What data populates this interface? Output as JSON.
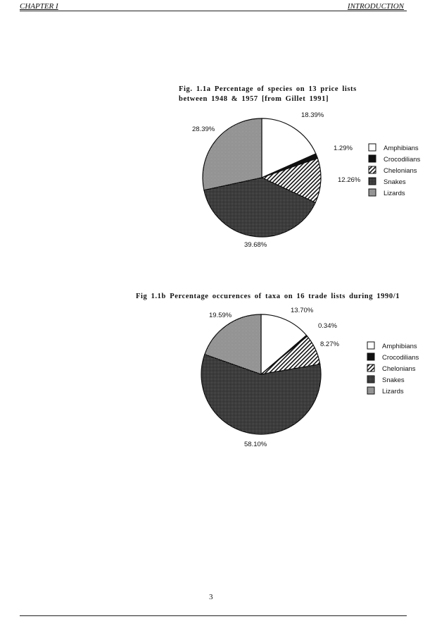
{
  "header": {
    "left": "CHAPTER I",
    "right": "INTRODUCTION"
  },
  "page_number": "3",
  "chart_data": [
    {
      "type": "pie",
      "title": "Fig. 1.1a Percentage of species on 13 price lists between 1948 & 1957 [from Gillet 1991]",
      "title_lines": [
        "Fig. 1.1a Percentage of species on 13 price lists",
        "between 1948 & 1957 [from Gillet 1991]"
      ],
      "categories": [
        "Amphibians",
        "Crocodilians",
        "Chelonians",
        "Snakes",
        "Lizards"
      ],
      "values": [
        18.39,
        1.29,
        12.26,
        39.68,
        28.39
      ],
      "labels": [
        "18.39%",
        "1.29%",
        "12.26%",
        "39.68%",
        "28.39%"
      ],
      "start": "12 o'clock, clockwise",
      "legend": "right"
    },
    {
      "type": "pie",
      "title": "Fig 1.1b Percentage occurences of taxa on 16 trade lists during 1990/1",
      "title_lines": [
        "Fig 1.1b Percentage occurences of taxa on 16 trade lists during 1990/1"
      ],
      "categories": [
        "Amphibians",
        "Crocodilians",
        "Chelonians",
        "Snakes",
        "Lizards"
      ],
      "values": [
        13.7,
        0.34,
        8.27,
        58.1,
        19.59
      ],
      "labels": [
        "13.70%",
        "0.34%",
        "8.27%",
        "58.10%",
        "19.59%"
      ],
      "start": "12 o'clock, clockwise",
      "legend": "right"
    }
  ],
  "fills": {
    "Amphibians": "white",
    "Crocodilians": "#111111",
    "Chelonians": "diagonal-hatch",
    "Snakes": "#3a3a3a",
    "Lizards": "#8a8a8a"
  }
}
